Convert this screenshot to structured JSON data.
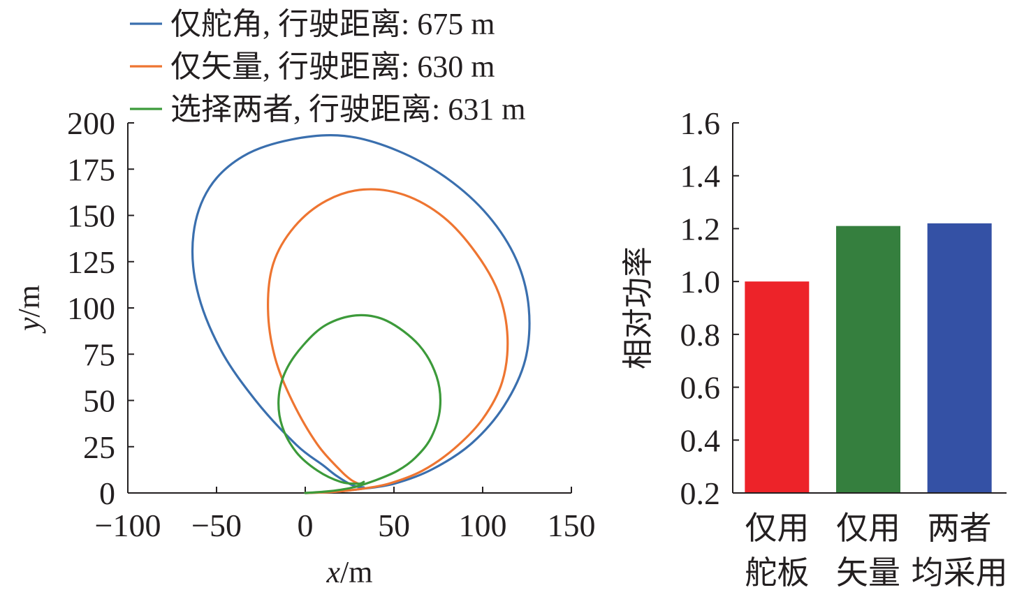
{
  "chart_data": [
    {
      "type": "line",
      "xlabel": "x/m",
      "xlabel_italic": "x",
      "xlabel_unit": "/m",
      "ylabel": "y/m",
      "ylabel_italic": "y",
      "ylabel_unit": "/m",
      "xlim": [
        -100,
        150
      ],
      "ylim": [
        0,
        200
      ],
      "x_ticks": [
        -100,
        -50,
        0,
        50,
        100,
        150
      ],
      "x_tick_labels": [
        "−100",
        "−50",
        "0",
        "50",
        "100",
        "150"
      ],
      "y_ticks": [
        0,
        25,
        50,
        75,
        100,
        125,
        150,
        175,
        200
      ],
      "y_tick_labels": [
        "0",
        "25",
        "50",
        "75",
        "100",
        "125",
        "150",
        "175",
        "200"
      ],
      "grid": false,
      "legend_position": "top",
      "series": [
        {
          "name": "仅舵角, 行驶距离: 675 m",
          "color": "#3a6fae",
          "x": [
            0,
            14,
            30,
            50,
            72,
            94,
            112,
            124,
            126,
            119,
            103,
            80,
            52,
            22,
            -8,
            -35,
            -54,
            -63,
            -61,
            -48,
            -28,
            -5,
            10,
            18,
            27,
            33
          ],
          "y": [
            0,
            0.5,
            2,
            5,
            13,
            27,
            47,
            72,
            100,
            126,
            150,
            170,
            185,
            193,
            191,
            182,
            165,
            140,
            110,
            78,
            50,
            26,
            15,
            9,
            4,
            3
          ]
        },
        {
          "name": "仅矢量, 行驶距离: 630 m",
          "color": "#ee7531",
          "x": [
            0,
            15,
            30,
            47,
            66,
            84,
            100,
            111,
            114,
            109,
            96,
            78,
            56,
            33,
            12,
            -6,
            -18,
            -21,
            -17,
            -7,
            7,
            20,
            26,
            30
          ],
          "y": [
            0,
            0.5,
            2,
            5,
            12,
            24,
            40,
            60,
            84,
            108,
            130,
            149,
            161,
            164,
            158,
            144,
            124,
            99,
            73,
            49,
            26,
            12,
            7,
            5
          ]
        },
        {
          "name": "选择两者, 行驶距离: 631 m",
          "color": "#3c9a3a",
          "x": [
            0,
            14,
            27,
            40,
            52,
            62,
            71,
            76,
            74,
            64,
            46,
            29,
            12,
            -1,
            -11,
            -15,
            -13,
            -5,
            7,
            20,
            30,
            33
          ],
          "y": [
            0,
            1,
            3,
            7,
            12,
            19,
            30,
            46,
            63,
            80,
            93,
            96,
            91,
            80,
            66,
            51,
            36,
            22,
            12,
            6,
            5,
            6
          ]
        }
      ]
    },
    {
      "type": "bar",
      "categories": [
        [
          "仅用",
          "舵板"
        ],
        [
          "仅用",
          "矢量"
        ],
        [
          "两者",
          "均采用"
        ]
      ],
      "values": [
        1.0,
        1.21,
        1.22
      ],
      "colors": [
        "#ed2329",
        "#357f3e",
        "#3451a5"
      ],
      "ylabel": "相对功率",
      "ylim": [
        0.2,
        1.6
      ],
      "y_ticks": [
        0.2,
        0.4,
        0.6,
        0.8,
        1.0,
        1.2,
        1.4,
        1.6
      ],
      "y_tick_labels": [
        "0.2",
        "0.4",
        "0.6",
        "0.8",
        "1.0",
        "1.2",
        "1.4",
        "1.6"
      ],
      "grid": false
    }
  ]
}
